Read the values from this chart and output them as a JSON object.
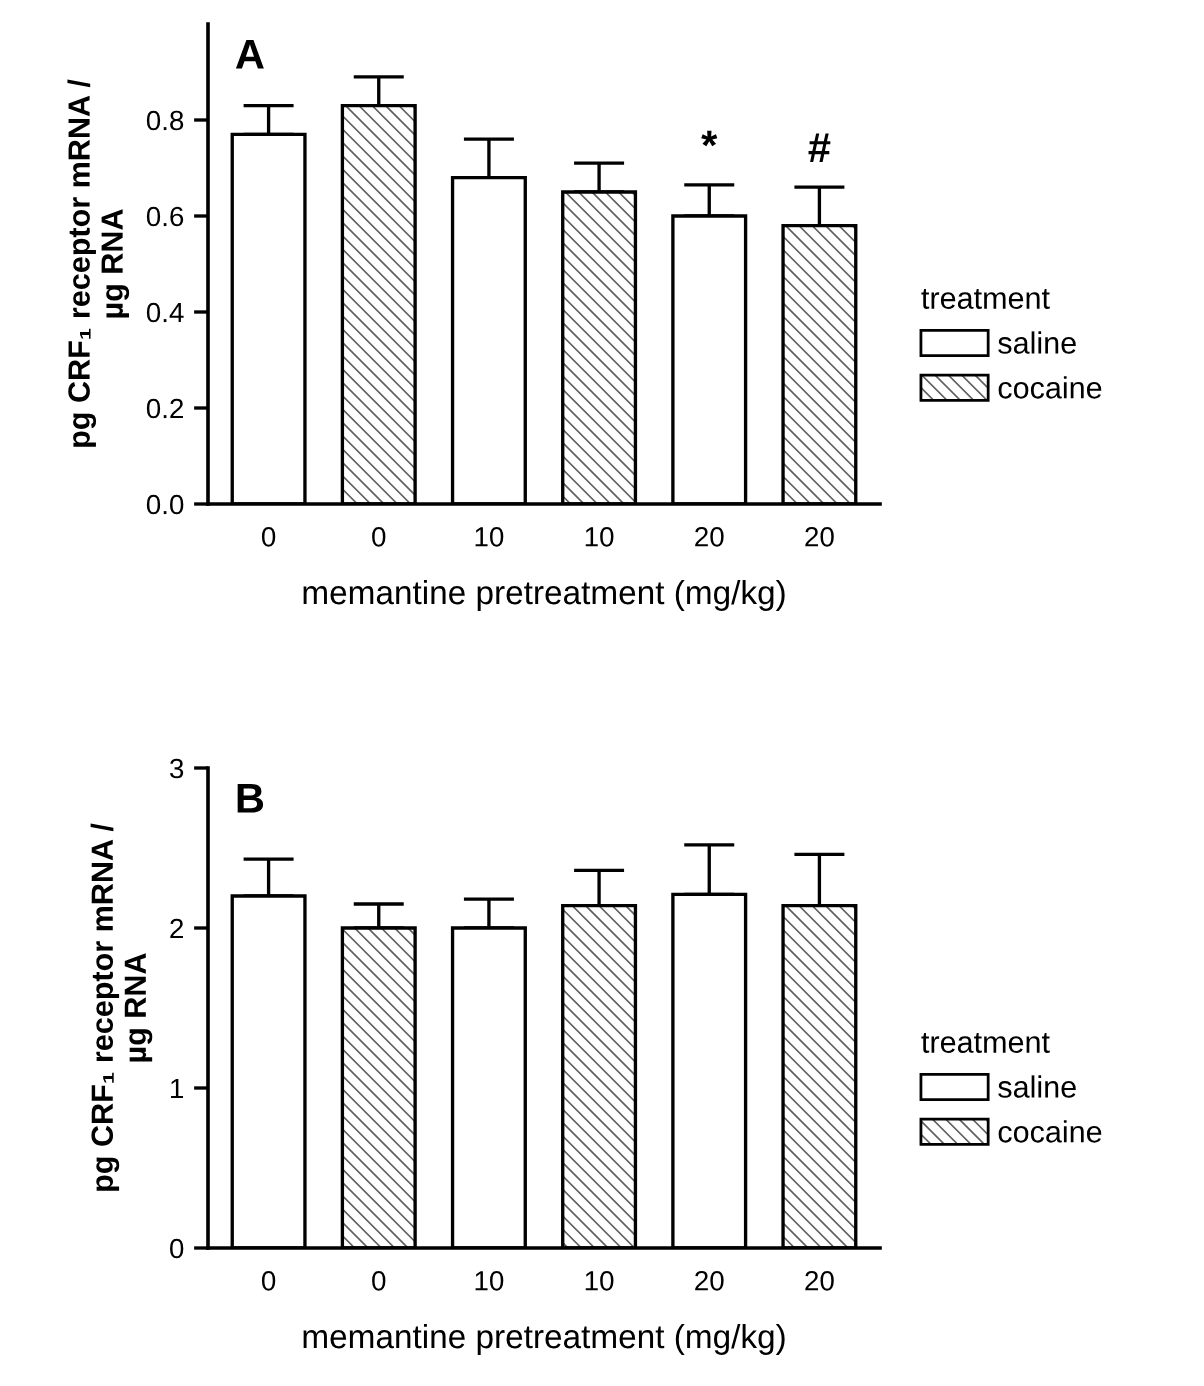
{
  "chart_data": [
    {
      "type": "bar",
      "categories": [
        "0",
        "0",
        "10",
        "10",
        "20",
        "20"
      ],
      "series": [
        {
          "name": "saline",
          "color": "#ffffff",
          "values": [
            0.77,
            null,
            0.68,
            null,
            0.6,
            null
          ],
          "errors": [
            [
              0.77,
              0.83
            ],
            null,
            [
              0.68,
              0.76
            ],
            null,
            [
              0.6,
              0.665
            ],
            null
          ],
          "value_labels": [
            null,
            null,
            null,
            null,
            "*",
            null
          ]
        },
        {
          "name": "cocaine",
          "color": "#606060",
          "values": [
            null,
            0.83,
            null,
            0.65,
            null,
            0.58
          ],
          "errors": [
            null,
            [
              0.83,
              0.89
            ],
            null,
            [
              0.65,
              0.71
            ],
            null,
            [
              0.58,
              0.66
            ]
          ],
          "value_labels": [
            null,
            null,
            null,
            null,
            null,
            "#"
          ]
        }
      ],
      "ylim": [
        0,
        1.0
      ],
      "yticks": [
        {
          "value": 0.0,
          "label": "0.0"
        },
        0.2,
        0.4,
        0.6,
        0.8
      ],
      "xlabel": "memantine pretreatment (mg/kg)",
      "ylabel": "pg CRF₁ receptor mRNA /\nµg RNA",
      "legend_title": "treatment",
      "legend": "right",
      "grid": false,
      "annotations": [
        "A"
      ]
    },
    {
      "type": "bar",
      "categories": [
        "0",
        "0",
        "10",
        "10",
        "20",
        "20"
      ],
      "series": [
        {
          "name": "saline",
          "color": "#ffffff",
          "values": [
            2.2,
            null,
            2.0,
            null,
            2.21,
            null
          ],
          "errors": [
            [
              2.2,
              2.43
            ],
            null,
            [
              2.0,
              2.18
            ],
            null,
            [
              2.21,
              2.52
            ],
            null
          ]
        },
        {
          "name": "cocaine",
          "color": "#606060",
          "values": [
            null,
            2.0,
            null,
            2.14,
            null,
            2.14
          ],
          "errors": [
            null,
            [
              2.0,
              2.15
            ],
            null,
            [
              2.14,
              2.36
            ],
            null,
            [
              2.14,
              2.46
            ]
          ]
        }
      ],
      "ylim": [
        0,
        3
      ],
      "yticks": [
        0,
        1,
        2,
        3
      ],
      "xlabel": "memantine pretreatment (mg/kg)",
      "ylabel": "pg CRF₁ receptor mRNA /\nµg RNA",
      "legend_title": "treatment",
      "legend": "right",
      "grid": false,
      "annotations": [
        "B"
      ]
    }
  ]
}
